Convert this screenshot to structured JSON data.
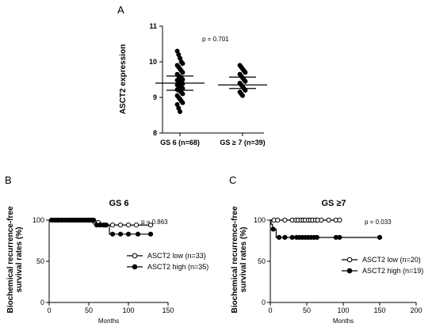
{
  "chart_data": [
    {
      "panel": "A",
      "type": "scatter",
      "title": "",
      "xlabel": "",
      "ylabel": "ASCT2 expression",
      "ylim": [
        8,
        11
      ],
      "yticks": [
        8,
        9,
        10,
        11
      ],
      "categories": [
        "GS 6 (n=68)",
        "GS ≥ 7 (n=39)"
      ],
      "annotation": "p = 0.701",
      "series": [
        {
          "category": "GS 6 (n=68)",
          "mean": 9.4,
          "ci": [
            9.2,
            9.6
          ],
          "values": [
            10.3,
            10.2,
            10.1,
            10.0,
            9.95,
            9.9,
            9.85,
            9.8,
            9.75,
            9.7,
            9.65,
            9.6,
            9.58,
            9.55,
            9.5,
            9.48,
            9.45,
            9.42,
            9.4,
            9.38,
            9.35,
            9.32,
            9.3,
            9.28,
            9.25,
            9.22,
            9.2,
            9.18,
            9.15,
            9.1,
            9.05,
            9.0,
            8.95,
            8.9,
            8.85,
            8.8,
            8.7,
            8.6
          ]
        },
        {
          "category": "GS ≥ 7 (n=39)",
          "mean": 9.35,
          "ci": [
            9.25,
            9.57
          ],
          "values": [
            9.9,
            9.85,
            9.8,
            9.75,
            9.7,
            9.65,
            9.6,
            9.55,
            9.5,
            9.45,
            9.4,
            9.35,
            9.3,
            9.25,
            9.2,
            9.15,
            9.1,
            9.05
          ]
        }
      ]
    },
    {
      "panel": "B",
      "type": "line",
      "title": "GS 6",
      "xlabel": "Months",
      "ylabel": "Biochemical recurrence-free survival rates (%)",
      "xlim": [
        0,
        150
      ],
      "ylim": [
        0,
        100
      ],
      "xticks": [
        0,
        50,
        100,
        150
      ],
      "yticks": [
        0,
        50,
        100
      ],
      "annotation": "p = 0.863",
      "legend_position": "right",
      "series": [
        {
          "name": "ASCT2 low (n=33)",
          "marker": "open-circle",
          "steps": [
            [
              0,
              100
            ],
            [
              55,
              100
            ],
            [
              55,
              97
            ],
            [
              65,
              97
            ],
            [
              65,
              94
            ],
            [
              128,
              94
            ]
          ],
          "censored": [
            [
              5,
              100
            ],
            [
              10,
              100
            ],
            [
              15,
              100
            ],
            [
              20,
              100
            ],
            [
              25,
              100
            ],
            [
              28,
              100
            ],
            [
              32,
              100
            ],
            [
              36,
              100
            ],
            [
              40,
              100
            ],
            [
              44,
              100
            ],
            [
              48,
              100
            ],
            [
              50,
              100
            ],
            [
              52,
              100
            ],
            [
              58,
              97
            ],
            [
              62,
              97
            ],
            [
              70,
              94
            ],
            [
              80,
              94
            ],
            [
              90,
              94
            ],
            [
              100,
              94
            ],
            [
              110,
              94
            ],
            [
              128,
              94
            ]
          ]
        },
        {
          "name": "ASCT2 high (n=35)",
          "marker": "filled-circle",
          "steps": [
            [
              0,
              100
            ],
            [
              58,
              100
            ],
            [
              58,
              94
            ],
            [
              76,
              94
            ],
            [
              76,
              83
            ],
            [
              128,
              83
            ]
          ],
          "censored": [
            [
              3,
              100
            ],
            [
              8,
              100
            ],
            [
              12,
              100
            ],
            [
              17,
              100
            ],
            [
              22,
              100
            ],
            [
              26,
              100
            ],
            [
              30,
              100
            ],
            [
              34,
              100
            ],
            [
              38,
              100
            ],
            [
              42,
              100
            ],
            [
              46,
              100
            ],
            [
              50,
              100
            ],
            [
              54,
              100
            ],
            [
              56,
              100
            ],
            [
              60,
              94
            ],
            [
              64,
              94
            ],
            [
              68,
              94
            ],
            [
              72,
              94
            ],
            [
              80,
              83
            ],
            [
              90,
              83
            ],
            [
              100,
              83
            ],
            [
              112,
              83
            ],
            [
              128,
              83
            ]
          ]
        }
      ]
    },
    {
      "panel": "C",
      "type": "line",
      "title": "GS ≥7",
      "xlabel": "Months",
      "ylabel": "Biochemical recurrence-free survival rates (%)",
      "xlim": [
        0,
        200
      ],
      "ylim": [
        0,
        100
      ],
      "xticks": [
        0,
        50,
        100,
        150,
        200
      ],
      "yticks": [
        0,
        50,
        100
      ],
      "annotation": "p = 0.033",
      "legend_position": "right",
      "series": [
        {
          "name": "ASCT2 low (n=20)",
          "marker": "open-circle",
          "steps": [
            [
              0,
              100
            ],
            [
              95,
              100
            ]
          ],
          "censored": [
            [
              5,
              100
            ],
            [
              10,
              100
            ],
            [
              20,
              100
            ],
            [
              30,
              100
            ],
            [
              35,
              100
            ],
            [
              38,
              100
            ],
            [
              42,
              100
            ],
            [
              45,
              100
            ],
            [
              48,
              100
            ],
            [
              52,
              100
            ],
            [
              55,
              100
            ],
            [
              58,
              100
            ],
            [
              62,
              100
            ],
            [
              65,
              100
            ],
            [
              70,
              100
            ],
            [
              80,
              100
            ],
            [
              90,
              100
            ],
            [
              95,
              100
            ]
          ]
        },
        {
          "name": "ASCT2 high (n=19)",
          "marker": "filled-circle",
          "steps": [
            [
              0,
              100
            ],
            [
              1,
              100
            ],
            [
              1,
              95
            ],
            [
              3,
              95
            ],
            [
              3,
              89
            ],
            [
              8,
              89
            ],
            [
              8,
              79
            ],
            [
              150,
              79
            ]
          ],
          "censored": [
            [
              4,
              89
            ],
            [
              12,
              79
            ],
            [
              20,
              79
            ],
            [
              30,
              79
            ],
            [
              36,
              79
            ],
            [
              40,
              79
            ],
            [
              44,
              79
            ],
            [
              48,
              79
            ],
            [
              52,
              79
            ],
            [
              56,
              79
            ],
            [
              60,
              79
            ],
            [
              64,
              79
            ],
            [
              90,
              79
            ],
            [
              95,
              79
            ],
            [
              150,
              79
            ]
          ]
        }
      ]
    }
  ]
}
